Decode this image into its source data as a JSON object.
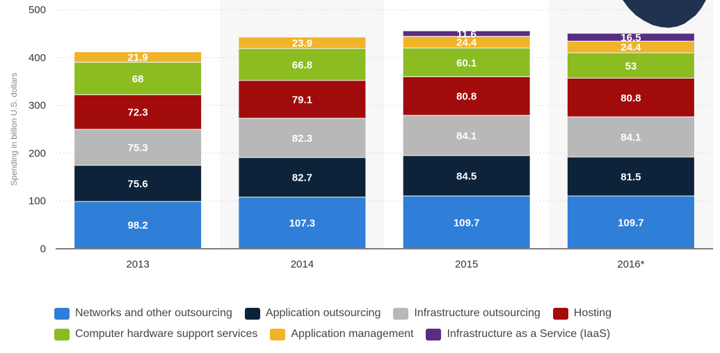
{
  "chart_data": {
    "type": "bar",
    "stacked": true,
    "categories": [
      "2013",
      "2014",
      "2015",
      "2016*"
    ],
    "ylabel": "Spending in billion U.S. dollars",
    "xlabel": "",
    "ylim": [
      0,
      500
    ],
    "yticks": [
      0,
      100,
      200,
      300,
      400,
      500
    ],
    "grid": true,
    "legend_position": "bottom",
    "series": [
      {
        "name": "Networks and other outsourcing",
        "color": "#2f7ed8",
        "values": [
          98.2,
          107.3,
          109.7,
          109.7
        ],
        "labels": [
          "98.2",
          "107.3",
          "109.7",
          "109.7"
        ]
      },
      {
        "name": "Application outsourcing",
        "color": "#0d233a",
        "values": [
          75.6,
          82.7,
          84.5,
          81.5
        ],
        "labels": [
          "75.6",
          "82.7",
          "84.5",
          "81.5"
        ]
      },
      {
        "name": "Infrastructure outsourcing",
        "color": "#b8b8b8",
        "values": [
          75.3,
          82.3,
          84.1,
          84.1
        ],
        "labels": [
          "75.3",
          "82.3",
          "84.1",
          "84.1"
        ]
      },
      {
        "name": "Hosting",
        "color": "#a20b0b",
        "values": [
          72.3,
          79.1,
          80.8,
          80.8
        ],
        "labels": [
          "72.3",
          "79.1",
          "80.8",
          "80.8"
        ]
      },
      {
        "name": "Computer hardware support services",
        "color": "#8bbc21",
        "values": [
          68,
          66.8,
          60.1,
          53
        ],
        "labels": [
          "68",
          "66.8",
          "60.1",
          "53"
        ]
      },
      {
        "name": "Application management",
        "color": "#f0b32a",
        "values": [
          21.9,
          23.9,
          24.4,
          24.4
        ],
        "labels": [
          "21.9",
          "23.9",
          "24.4",
          "24.4"
        ]
      },
      {
        "name": "Infrastructure as a Service (IaaS)",
        "color": "#5a2d82",
        "values": [
          0,
          0,
          11.6,
          16.5
        ],
        "labels": [
          "",
          "",
          "11.6",
          "16.5"
        ]
      }
    ]
  },
  "colors": {
    "band": "#f7f7f7",
    "grid": "#d8d8d8",
    "axis": "#333333",
    "badge": "#1f3350"
  },
  "badge_icon": "gear-badge-icon"
}
